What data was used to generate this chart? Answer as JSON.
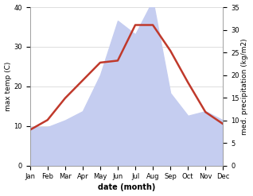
{
  "months": [
    "Jan",
    "Feb",
    "Mar",
    "Apr",
    "May",
    "Jun",
    "Jul",
    "Aug",
    "Sep",
    "Oct",
    "Nov",
    "Dec"
  ],
  "temp": [
    9.0,
    11.5,
    17.0,
    21.5,
    26.0,
    26.5,
    35.5,
    35.5,
    29.0,
    21.0,
    13.5,
    10.5
  ],
  "precip": [
    8.5,
    8.5,
    10.0,
    12.0,
    20.0,
    32.0,
    29.0,
    36.5,
    16.0,
    11.0,
    12.0,
    10.0
  ],
  "temp_color": "#c0392b",
  "precip_fill_color": "#c5cdf0",
  "ylim_left": [
    0,
    40
  ],
  "ylim_right": [
    0,
    35
  ],
  "precip_scale_factor": 1.143,
  "xlabel": "date (month)",
  "ylabel_left": "max temp (C)",
  "ylabel_right": "med. precipitation (kg/m2)",
  "temp_lw": 1.8,
  "bg_color": "#ffffff",
  "grid_color": "#d0d0d0",
  "tick_label_fontsize": 6.0,
  "axis_label_fontsize": 6.5
}
